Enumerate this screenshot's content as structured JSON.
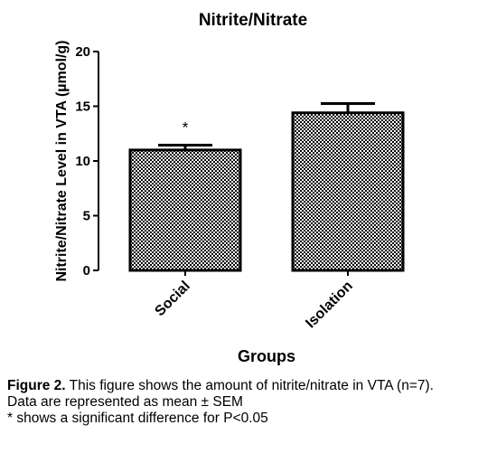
{
  "chart_data": {
    "type": "bar",
    "title": "Nitrite/Nitrate",
    "xlabel": "Groups",
    "ylabel": "Nitrite/Nitrate Level in VTA (µmol/g)",
    "categories": [
      "Social",
      "Isolation"
    ],
    "values": [
      11.0,
      14.4
    ],
    "error": [
      0.45,
      0.85
    ],
    "annotations": [
      "*",
      ""
    ],
    "yticks": [
      "0",
      "5",
      "10",
      "15",
      "20"
    ],
    "ylim": [
      0,
      20
    ],
    "grid": false,
    "legend": "none",
    "bar_fill": "checkered black and white"
  },
  "caption": {
    "label": "Figure 2.",
    "text": " This figure shows the amount of nitrite/nitrate in VTA (n=7).",
    "line2": "Data are represented as mean ± SEM",
    "line3": "* shows a significant difference for P<0.05"
  }
}
